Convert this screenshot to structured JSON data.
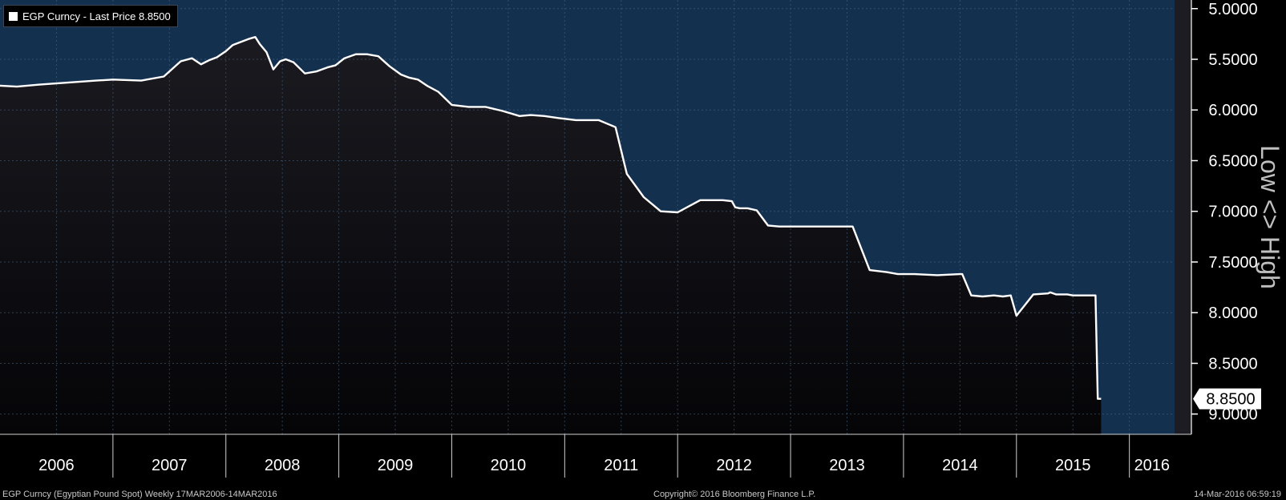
{
  "legend": {
    "label": "EGP Curncy - Last Price 8.8500"
  },
  "footer": {
    "left": "EGP Curncy (Egyptian Pound Spot)  Weekly 17MAR2006-14MAR2016",
    "center": "Copyright© 2016 Bloomberg Finance L.P.",
    "right": "14-Mar-2016 06:59:19"
  },
  "colors": {
    "upper_fill": "#14304f",
    "lower_fill": "#0b0b10",
    "line": "#ffffff",
    "grid": "#4a6a8a",
    "axis_text": "#ffffff",
    "axis_label": "#bfbfbf"
  },
  "chart_data": {
    "type": "line",
    "title": "",
    "ylabel": "Low <> High",
    "y_inverted": true,
    "ylim": [
      5.0,
      9.0
    ],
    "yticks": [
      "5.0000",
      "5.5000",
      "6.0000",
      "6.5000",
      "7.0000",
      "7.5000",
      "8.0000",
      "8.5000",
      "9.0000"
    ],
    "ytick_values": [
      5.0,
      5.5,
      6.0,
      6.5,
      7.0,
      7.5,
      8.0,
      8.5,
      9.0
    ],
    "xlim": [
      2006.0,
      2016.4
    ],
    "xticks": [
      "2006",
      "2007",
      "2008",
      "2009",
      "2010",
      "2011",
      "2012",
      "2013",
      "2014",
      "2015",
      "2016"
    ],
    "last_value_label": "8.8500",
    "grid": true,
    "series": [
      {
        "x": [
          2006.0,
          2006.15,
          2006.35,
          2006.6,
          2006.85,
          2007.0,
          2007.25,
          2007.45,
          2007.6,
          2007.7,
          2007.78,
          2007.85,
          2007.92,
          2008.0,
          2008.06,
          2008.13,
          2008.2,
          2008.26,
          2008.3,
          2008.36,
          2008.42,
          2008.48,
          2008.53,
          2008.6,
          2008.7,
          2008.8,
          2008.9,
          2008.97,
          2009.05,
          2009.15,
          2009.25,
          2009.35,
          2009.45,
          2009.55,
          2009.62,
          2009.7,
          2009.78,
          2009.88,
          2010.0,
          2010.15,
          2010.3,
          2010.45,
          2010.6,
          2010.7,
          2010.82,
          2010.95,
          2011.1,
          2011.3,
          2011.45,
          2011.55,
          2011.7,
          2011.85,
          2012.0,
          2012.2,
          2012.4,
          2012.48,
          2012.51,
          2012.55,
          2012.62,
          2012.7,
          2012.8,
          2012.9,
          2013.0,
          2013.1,
          2013.2,
          2013.3,
          2013.4,
          2013.48,
          2013.55,
          2013.7,
          2013.85,
          2013.95,
          2014.1,
          2014.3,
          2014.5,
          2014.52,
          2014.6,
          2014.7,
          2014.8,
          2014.88,
          2014.95,
          2015.0,
          2015.15,
          2015.28,
          2015.3,
          2015.35,
          2015.4,
          2015.45,
          2015.5,
          2015.6,
          2015.7,
          2015.72,
          2015.75
        ],
        "values": [
          5.76,
          5.77,
          5.75,
          5.73,
          5.71,
          5.7,
          5.71,
          5.67,
          5.52,
          5.49,
          5.55,
          5.51,
          5.48,
          5.42,
          5.36,
          5.33,
          5.3,
          5.28,
          5.35,
          5.43,
          5.6,
          5.52,
          5.5,
          5.53,
          5.64,
          5.62,
          5.58,
          5.56,
          5.49,
          5.45,
          5.45,
          5.47,
          5.57,
          5.65,
          5.68,
          5.7,
          5.76,
          5.82,
          5.95,
          5.97,
          5.97,
          6.01,
          6.06,
          6.05,
          6.06,
          6.08,
          6.1,
          6.1,
          6.17,
          6.63,
          6.86,
          7.0,
          7.01,
          6.89,
          6.89,
          6.9,
          6.96,
          6.97,
          6.97,
          6.99,
          7.14,
          7.15,
          7.15,
          7.15,
          7.15,
          7.15,
          7.15,
          7.15,
          7.15,
          7.58,
          7.6,
          7.62,
          7.62,
          7.63,
          7.62,
          7.62,
          7.83,
          7.84,
          7.83,
          7.84,
          7.83,
          8.03,
          7.82,
          7.81,
          7.8,
          7.82,
          7.82,
          7.82,
          7.83,
          7.83,
          7.83,
          8.85,
          8.85
        ]
      }
    ]
  }
}
